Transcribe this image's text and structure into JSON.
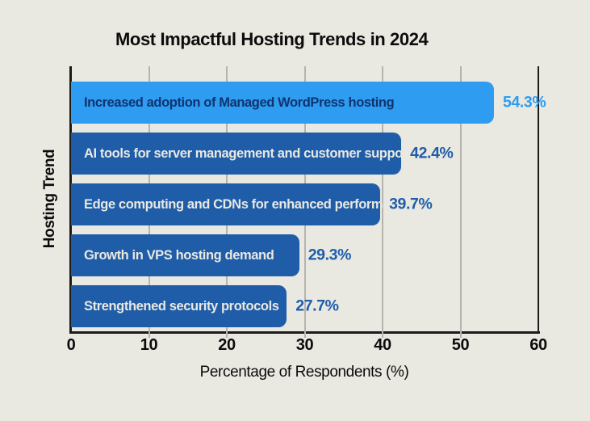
{
  "colors": {
    "background": "#E9E8E1",
    "bar_primary": "#2E9CF1",
    "bar_secondary": "#1F5DA9",
    "label_on_primary": "#0F3470",
    "label_on_secondary": "#E9E8E1",
    "value_primary": "#2E9CF1",
    "value_secondary": "#1F5DA9",
    "grid": "#B5B4AE",
    "axis": "#1B1B1B",
    "text": "#0C0C0C"
  },
  "chart_data": {
    "type": "bar",
    "orientation": "horizontal",
    "title": "Most Impactful Hosting Trends in 2024",
    "xlabel": "Percentage of Respondents (%)",
    "ylabel": "Hosting Trend",
    "categories": [
      "Increased adoption of Managed WordPress hosting",
      "AI tools for server management and customer support",
      "Edge computing and CDNs for enhanced performance",
      "Growth in VPS hosting demand",
      "Strengthened security protocols"
    ],
    "values": [
      54.3,
      42.4,
      39.7,
      29.3,
      27.7
    ],
    "value_labels": [
      "54.3%",
      "42.4%",
      "39.7%",
      "29.3%",
      "27.7%"
    ],
    "xlim": [
      0,
      60
    ],
    "xticks": [
      0,
      10,
      20,
      30,
      40,
      50,
      60
    ],
    "grid": "vertical",
    "legend": "none",
    "highlight_index": 0
  }
}
